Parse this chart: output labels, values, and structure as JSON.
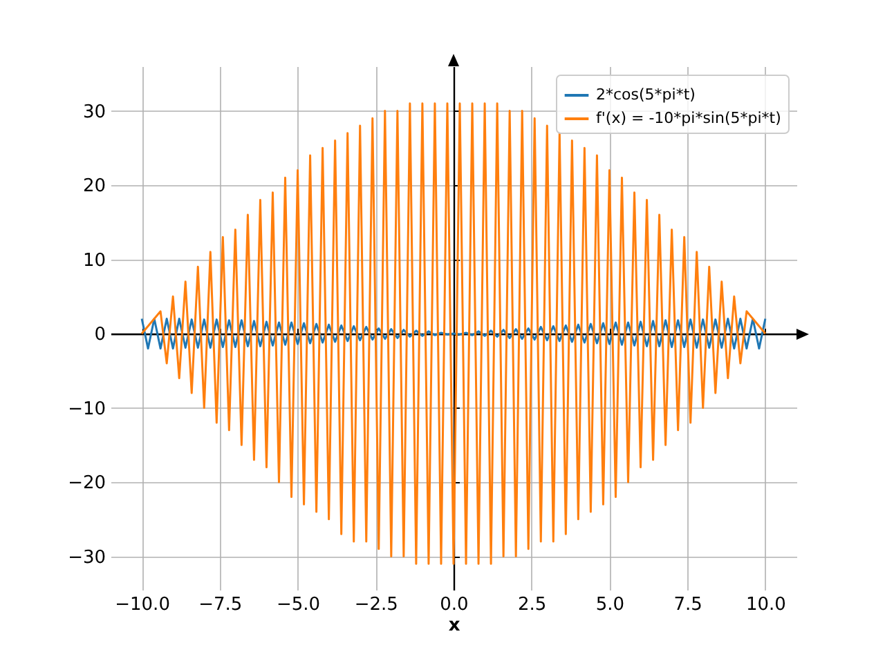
{
  "chart_data": {
    "type": "line",
    "xlabel": "x",
    "xlim": [
      -11,
      11
    ],
    "ylim": [
      -34.5,
      36
    ],
    "xticks": [
      {
        "value": -10,
        "label": "−10.0"
      },
      {
        "value": -7.5,
        "label": "−7.5"
      },
      {
        "value": -5,
        "label": "−5.0"
      },
      {
        "value": -2.5,
        "label": "−2.5"
      },
      {
        "value": 0,
        "label": "0.0"
      },
      {
        "value": 2.5,
        "label": "2.5"
      },
      {
        "value": 5,
        "label": "5.0"
      },
      {
        "value": 7.5,
        "label": "7.5"
      },
      {
        "value": 10,
        "label": "10.0"
      }
    ],
    "yticks": [
      {
        "value": -30,
        "label": "−30"
      },
      {
        "value": -20,
        "label": "−20"
      },
      {
        "value": -10,
        "label": "−10"
      },
      0,
      10,
      20,
      30
    ],
    "grid": true,
    "legend": "top right",
    "series": [
      {
        "name": "2*cos(5*pi*t)",
        "color": "#1f77b4",
        "x": [
          -10,
          -9.8,
          -9.6,
          -9.4,
          -9.2,
          -9,
          -8.8,
          -8.6,
          -8.4,
          -8.2,
          -8,
          -7.8,
          -7.6,
          -7.4,
          -7.2,
          -7,
          -6.8,
          -6.6,
          -6.4,
          -6.2,
          -6,
          -5.8,
          -5.6,
          -5.4,
          -5.2,
          -5,
          -4.8,
          -4.6,
          -4.4,
          -4.2,
          -4,
          -3.8,
          -3.6,
          -3.4,
          -3.2,
          -3,
          -2.8,
          -2.6,
          -2.4,
          -2.2,
          -2,
          -1.8,
          -1.6,
          -1.4,
          -1.2,
          -1,
          -0.8,
          -0.6,
          -0.4,
          -0.2,
          0,
          0.2,
          0.4,
          0.6,
          0.8,
          1,
          1.2,
          1.4,
          1.6,
          1.8,
          2,
          2.2,
          2.4,
          2.6,
          2.8,
          3,
          3.2,
          3.4,
          3.6,
          3.8,
          4,
          4.2,
          4.4,
          4.6,
          4.8,
          5,
          5.2,
          5.4,
          5.6,
          5.8,
          6,
          6.2,
          6.4,
          6.6,
          6.8,
          7,
          7.2,
          7.4,
          7.6,
          7.8,
          8,
          8.2,
          8.4,
          8.6,
          8.8,
          9,
          9.2,
          9.4,
          9.6,
          9.8,
          10
        ],
        "values": [
          2.0,
          -2.0,
          2.0,
          -2.0,
          2.0,
          -2.0,
          2.0,
          -1.9,
          1.9,
          -1.9,
          1.9,
          -1.9,
          1.9,
          -1.8,
          1.8,
          -1.8,
          1.8,
          -1.7,
          1.7,
          -1.7,
          1.6,
          -1.6,
          1.5,
          -1.5,
          1.5,
          -1.4,
          1.4,
          -1.3,
          1.3,
          -1.2,
          1.2,
          -1.1,
          1.1,
          -1.0,
          1.0,
          -0.9,
          0.9,
          -0.8,
          0.7,
          -0.7,
          0.6,
          -0.6,
          0.5,
          -0.4,
          0.4,
          -0.3,
          0.3,
          -0.2,
          0.1,
          -0.1,
          0,
          -0.1,
          0.1,
          -0.2,
          0.3,
          -0.3,
          0.4,
          -0.4,
          0.5,
          -0.6,
          0.6,
          -0.7,
          0.7,
          -0.8,
          0.9,
          -0.9,
          1.0,
          -1.0,
          1.1,
          -1.1,
          1.2,
          -1.2,
          1.3,
          -1.3,
          1.4,
          -1.4,
          1.5,
          -1.5,
          1.5,
          -1.6,
          1.6,
          -1.7,
          1.7,
          -1.7,
          1.8,
          -1.8,
          1.8,
          -1.8,
          1.9,
          -1.9,
          1.9,
          -1.9,
          1.9,
          -1.9,
          2.0,
          -2.0,
          2.0,
          -2.0,
          2.0,
          -2.0,
          2.0
        ]
      },
      {
        "name": "f'(x) = -10*pi*sin(5*pi*t)",
        "color": "#ff7f0e",
        "x": [
          -10,
          -9.4,
          -9.2,
          -9,
          -8.8,
          -8.6,
          -8.4,
          -8.2,
          -8,
          -7.8,
          -7.6,
          -7.4,
          -7.2,
          -7,
          -6.8,
          -6.6,
          -6.4,
          -6.2,
          -6,
          -5.8,
          -5.6,
          -5.4,
          -5.2,
          -5,
          -4.8,
          -4.6,
          -4.4,
          -4.2,
          -4,
          -3.8,
          -3.6,
          -3.4,
          -3.2,
          -3,
          -2.8,
          -2.6,
          -2.4,
          -2.2,
          -2,
          -1.8,
          -1.6,
          -1.4,
          -1.2,
          -1,
          -0.8,
          -0.6,
          -0.4,
          -0.2,
          0,
          0.2,
          0.4,
          0.6,
          0.8,
          1,
          1.2,
          1.4,
          1.6,
          1.8,
          2,
          2.2,
          2.4,
          2.6,
          2.8,
          3,
          3.2,
          3.4,
          3.6,
          3.8,
          4,
          4.2,
          4.4,
          4.6,
          4.8,
          5,
          5.2,
          5.4,
          5.6,
          5.8,
          6,
          6.2,
          6.4,
          6.6,
          6.8,
          7,
          7.2,
          7.4,
          7.6,
          7.8,
          8,
          8.2,
          8.4,
          8.6,
          8.8,
          9,
          9.2,
          9.4,
          10
        ],
        "values": [
          0,
          3,
          -4,
          5,
          -6,
          7,
          -8,
          9,
          -10,
          11,
          -12,
          13,
          -13,
          14,
          -15,
          16,
          -17,
          18,
          -18,
          19,
          -20,
          21,
          -22,
          22,
          -23,
          24,
          -24,
          25,
          -25,
          26,
          -27,
          27,
          -28,
          28,
          -28,
          29,
          -29,
          30,
          -30,
          30,
          -30,
          31,
          -31,
          31,
          -31,
          31,
          -31,
          31,
          -31,
          31,
          -31,
          31,
          -31,
          31,
          -31,
          31,
          -30,
          30,
          -30,
          30,
          -29,
          29,
          -28,
          28,
          -28,
          27,
          -27,
          26,
          -25,
          25,
          -24,
          24,
          -23,
          22,
          -22,
          21,
          -20,
          19,
          -18,
          18,
          -17,
          16,
          -15,
          14,
          -13,
          13,
          -12,
          11,
          -10,
          9,
          -8,
          7,
          -6,
          5,
          -4,
          3,
          0
        ]
      }
    ]
  }
}
